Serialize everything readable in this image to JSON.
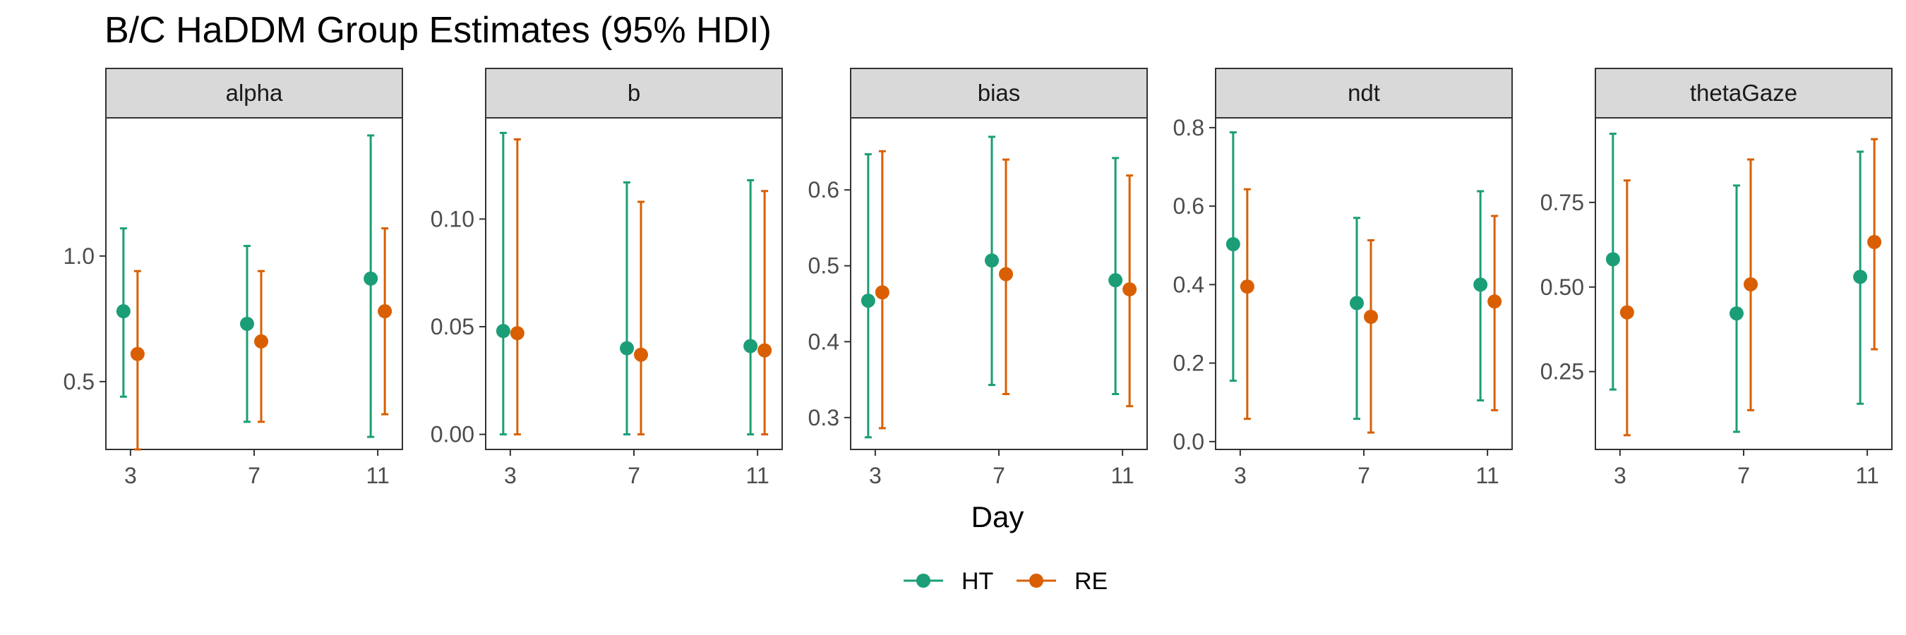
{
  "chart_data": {
    "type": "errorbar",
    "title": "B/C HaDDM Group Estimates (95% HDI)",
    "xlabel": "Day",
    "x": [
      "3",
      "7",
      "11"
    ],
    "legend": {
      "position": "bottom",
      "entries": [
        "HT",
        "RE"
      ]
    },
    "colors": {
      "HT": "#1b9e77",
      "RE": "#d95f02"
    },
    "panels": [
      {
        "name": "alpha",
        "ylim": [
          0.23,
          1.55
        ],
        "yticks": [
          0.5,
          1.0
        ],
        "ytick_labels": [
          "0.5",
          "1.0"
        ],
        "series": [
          {
            "name": "HT",
            "points": [
              {
                "x": "3",
                "y": 0.78,
                "lo": 0.44,
                "hi": 1.11
              },
              {
                "x": "7",
                "y": 0.73,
                "lo": 0.34,
                "hi": 1.04
              },
              {
                "x": "11",
                "y": 0.91,
                "lo": 0.28,
                "hi": 1.48
              }
            ]
          },
          {
            "name": "RE",
            "points": [
              {
                "x": "3",
                "y": 0.61,
                "lo": 0.23,
                "hi": 0.94
              },
              {
                "x": "7",
                "y": 0.66,
                "lo": 0.34,
                "hi": 0.94
              },
              {
                "x": "11",
                "y": 0.78,
                "lo": 0.37,
                "hi": 1.11
              }
            ]
          }
        ]
      },
      {
        "name": "b",
        "ylim": [
          -0.007,
          0.147
        ],
        "yticks": [
          0.0,
          0.05,
          0.1
        ],
        "ytick_labels": [
          "0.00",
          "0.05",
          "0.10"
        ],
        "series": [
          {
            "name": "HT",
            "points": [
              {
                "x": "3",
                "y": 0.048,
                "lo": 0.0,
                "hi": 0.14
              },
              {
                "x": "7",
                "y": 0.04,
                "lo": 0.0,
                "hi": 0.117
              },
              {
                "x": "11",
                "y": 0.041,
                "lo": 0.0,
                "hi": 0.118
              }
            ]
          },
          {
            "name": "RE",
            "points": [
              {
                "x": "3",
                "y": 0.047,
                "lo": 0.0,
                "hi": 0.137
              },
              {
                "x": "7",
                "y": 0.037,
                "lo": 0.0,
                "hi": 0.108
              },
              {
                "x": "11",
                "y": 0.039,
                "lo": 0.0,
                "hi": 0.113
              }
            ]
          }
        ]
      },
      {
        "name": "bias",
        "ylim": [
          0.258,
          0.695
        ],
        "yticks": [
          0.3,
          0.4,
          0.5,
          0.6
        ],
        "ytick_labels": [
          "0.3",
          "0.4",
          "0.5",
          "0.6"
        ],
        "series": [
          {
            "name": "HT",
            "points": [
              {
                "x": "3",
                "y": 0.454,
                "lo": 0.274,
                "hi": 0.647
              },
              {
                "x": "7",
                "y": 0.507,
                "lo": 0.343,
                "hi": 0.67
              },
              {
                "x": "11",
                "y": 0.481,
                "lo": 0.331,
                "hi": 0.642
              }
            ]
          },
          {
            "name": "RE",
            "points": [
              {
                "x": "3",
                "y": 0.465,
                "lo": 0.286,
                "hi": 0.651
              },
              {
                "x": "7",
                "y": 0.489,
                "lo": 0.331,
                "hi": 0.64
              },
              {
                "x": "11",
                "y": 0.469,
                "lo": 0.315,
                "hi": 0.619
              }
            ]
          }
        ]
      },
      {
        "name": "ndt",
        "ylim": [
          -0.02,
          0.825
        ],
        "yticks": [
          0.0,
          0.2,
          0.4,
          0.6,
          0.8
        ],
        "ytick_labels": [
          "0.0",
          "0.2",
          "0.4",
          "0.6",
          "0.8"
        ],
        "series": [
          {
            "name": "HT",
            "points": [
              {
                "x": "3",
                "y": 0.503,
                "lo": 0.155,
                "hi": 0.788
              },
              {
                "x": "7",
                "y": 0.353,
                "lo": 0.058,
                "hi": 0.57
              },
              {
                "x": "11",
                "y": 0.4,
                "lo": 0.105,
                "hi": 0.638
              }
            ]
          },
          {
            "name": "RE",
            "points": [
              {
                "x": "3",
                "y": 0.395,
                "lo": 0.058,
                "hi": 0.643
              },
              {
                "x": "7",
                "y": 0.318,
                "lo": 0.023,
                "hi": 0.513
              },
              {
                "x": "11",
                "y": 0.357,
                "lo": 0.08,
                "hi": 0.575
              }
            ]
          }
        ]
      },
      {
        "name": "thetaGaze",
        "ylim": [
          0.02,
          1.0
        ],
        "yticks": [
          0.25,
          0.5,
          0.75
        ],
        "ytick_labels": [
          "0.25",
          "0.50",
          "0.75"
        ],
        "series": [
          {
            "name": "HT",
            "points": [
              {
                "x": "3",
                "y": 0.582,
                "lo": 0.197,
                "hi": 0.953
              },
              {
                "x": "7",
                "y": 0.422,
                "lo": 0.072,
                "hi": 0.8
              },
              {
                "x": "11",
                "y": 0.53,
                "lo": 0.155,
                "hi": 0.9
              }
            ]
          },
          {
            "name": "RE",
            "points": [
              {
                "x": "3",
                "y": 0.425,
                "lo": 0.062,
                "hi": 0.815
              },
              {
                "x": "7",
                "y": 0.508,
                "lo": 0.136,
                "hi": 0.877
              },
              {
                "x": "11",
                "y": 0.633,
                "lo": 0.316,
                "hi": 0.937
              }
            ]
          }
        ]
      }
    ]
  }
}
